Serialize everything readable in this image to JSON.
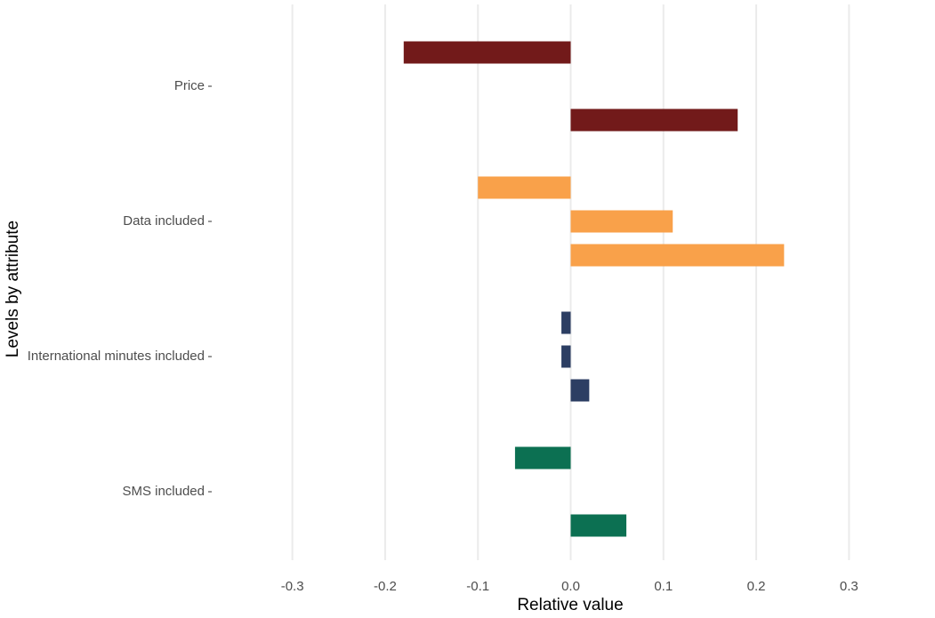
{
  "chart_data": {
    "type": "bar",
    "x_label": "Relative value",
    "y_label": "Levels by attribute",
    "groups": [
      {
        "name": "Price",
        "color": "#721a1a",
        "values": [
          -0.18,
          0.18
        ]
      },
      {
        "name": "Data included",
        "color": "#f9a14a",
        "values": [
          -0.1,
          0.11,
          0.23
        ]
      },
      {
        "name": "International minutes included",
        "color": "#2c3e63",
        "values": [
          -0.01,
          -0.01,
          0.02
        ]
      },
      {
        "name": "SMS included",
        "color": "#0c7052",
        "values": [
          -0.06,
          0.06
        ]
      }
    ],
    "xlim": [
      -0.385,
      0.385
    ],
    "xticks": [
      -0.3,
      -0.2,
      -0.1,
      {
        "value": 0,
        "label": "0.0"
      },
      0.1,
      0.2,
      0.3
    ],
    "grid": true
  }
}
